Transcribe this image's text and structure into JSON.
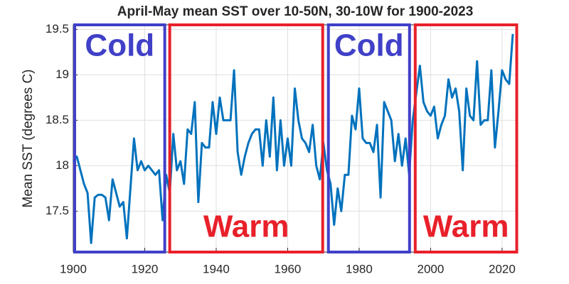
{
  "chart_data": {
    "type": "line",
    "title": "April-May mean SST over 10-50N, 30-10W for 1900-2023",
    "y_label": "Mean SST (degrees C)",
    "x": [
      1900,
      1901,
      1902,
      1903,
      1904,
      1905,
      1906,
      1907,
      1908,
      1909,
      1910,
      1911,
      1912,
      1913,
      1914,
      1915,
      1916,
      1917,
      1918,
      1919,
      1920,
      1921,
      1922,
      1923,
      1924,
      1925,
      1926,
      1927,
      1928,
      1929,
      1930,
      1931,
      1932,
      1933,
      1934,
      1935,
      1936,
      1937,
      1938,
      1939,
      1940,
      1941,
      1942,
      1943,
      1944,
      1945,
      1946,
      1947,
      1948,
      1949,
      1950,
      1951,
      1952,
      1953,
      1954,
      1955,
      1956,
      1957,
      1958,
      1959,
      1960,
      1961,
      1962,
      1963,
      1964,
      1965,
      1966,
      1967,
      1968,
      1969,
      1970,
      1971,
      1972,
      1973,
      1974,
      1975,
      1976,
      1977,
      1978,
      1979,
      1980,
      1981,
      1982,
      1983,
      1984,
      1985,
      1986,
      1987,
      1988,
      1989,
      1990,
      1991,
      1992,
      1993,
      1994,
      1995,
      1996,
      1997,
      1998,
      1999,
      2000,
      2001,
      2002,
      2003,
      2004,
      2005,
      2006,
      2007,
      2008,
      2009,
      2010,
      2011,
      2012,
      2013,
      2014,
      2015,
      2016,
      2017,
      2018,
      2019,
      2020,
      2021,
      2022,
      2023
    ],
    "series": [
      {
        "name": "Mean SST",
        "color": "#0072bd",
        "values": [
          18.05,
          18.1,
          17.95,
          17.8,
          17.7,
          17.15,
          17.65,
          17.68,
          17.68,
          17.65,
          17.4,
          17.85,
          17.7,
          17.55,
          17.6,
          17.2,
          17.75,
          18.3,
          17.95,
          18.05,
          17.95,
          18.0,
          17.95,
          17.9,
          17.95,
          17.4,
          17.9,
          17.7,
          18.35,
          17.95,
          18.05,
          17.8,
          18.4,
          18.35,
          18.7,
          17.6,
          18.25,
          18.2,
          18.2,
          18.7,
          18.35,
          18.75,
          18.5,
          18.5,
          18.5,
          19.05,
          18.15,
          17.9,
          18.1,
          18.25,
          18.35,
          18.4,
          18.4,
          18.0,
          18.5,
          18.1,
          18.75,
          17.95,
          18.5,
          18.0,
          18.3,
          18.0,
          18.85,
          18.5,
          18.3,
          18.25,
          18.15,
          18.45,
          18.0,
          17.85,
          18.25,
          17.95,
          17.8,
          17.35,
          17.75,
          17.5,
          17.9,
          17.9,
          18.55,
          18.4,
          18.85,
          18.3,
          18.25,
          18.25,
          18.15,
          18.45,
          17.65,
          18.7,
          18.6,
          18.5,
          18.05,
          18.35,
          18.0,
          18.3,
          17.9,
          18.5,
          18.8,
          19.1,
          18.7,
          18.6,
          18.55,
          18.65,
          18.3,
          18.45,
          18.55,
          18.95,
          18.75,
          18.85,
          18.6,
          17.95,
          18.85,
          18.55,
          18.5,
          19.15,
          18.45,
          18.5,
          18.5,
          19.05,
          18.2,
          18.6,
          19.05,
          18.95,
          18.9,
          19.45
        ]
      }
    ],
    "xlim": [
      1900,
      2024
    ],
    "xticks": [
      1900,
      1920,
      1940,
      1960,
      1980,
      2000,
      2020
    ],
    "ylim": [
      17.05,
      19.55
    ],
    "yticks": [
      17.5,
      18,
      18.5,
      19,
      19.5
    ],
    "grid": true,
    "annotations": [
      {
        "text": "Cold",
        "x": [
          1900,
          1926
        ],
        "color": "#4040c8"
      },
      {
        "text": "Warm",
        "x": [
          1926.6,
          1970.2
        ],
        "color": "#e8202a"
      },
      {
        "text": "Cold",
        "x": [
          1971,
          1994.5
        ],
        "color": "#4040c8"
      },
      {
        "text": "Warm",
        "x": [
          1995.3,
          2024.5
        ],
        "color": "#e8202a"
      }
    ]
  }
}
